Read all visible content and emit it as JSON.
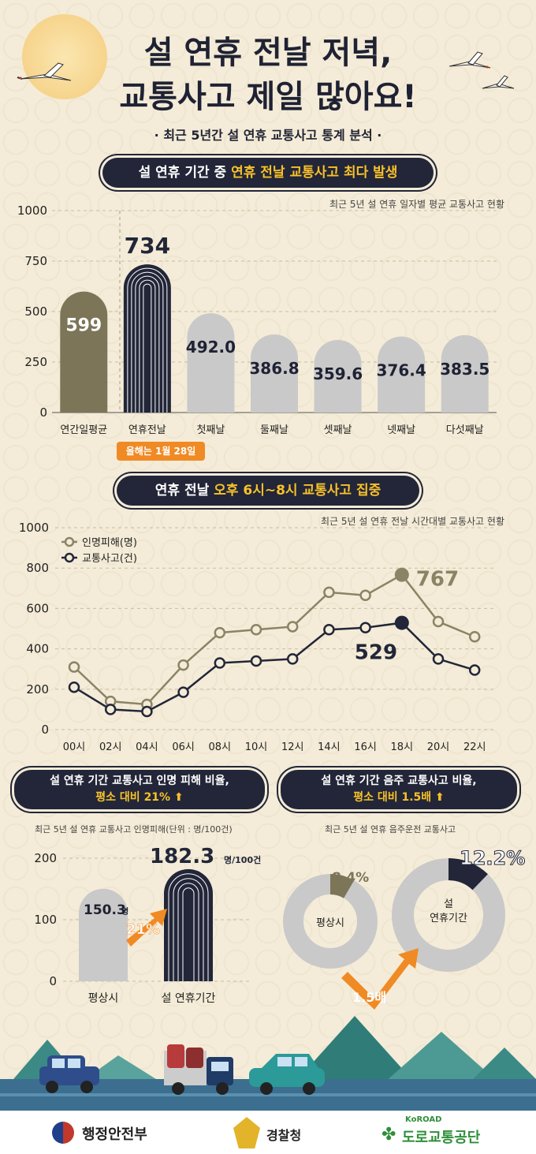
{
  "header": {
    "title_line1": "설 연휴 전날 저녁,",
    "title_line2": "교통사고 제일 많아요!",
    "subtitle": "· 최근 5년간 설 연휴 교통사고 통계 분석 ·"
  },
  "section1": {
    "pill_prefix": "설 연휴 기간 중 ",
    "pill_highlight": "연휴 전날 교통사고 최다 발생",
    "note": "최근 5년 설 연휴 일자별 평균 교통사고 현황",
    "date_badge": "올해는 1월 28일"
  },
  "section2": {
    "pill_prefix": "연휴 전날 ",
    "pill_highlight": "오후 6시~8시 교통사고 집중",
    "note": "최근 5년 설 연휴 전날 시간대별 교통사고 현황"
  },
  "section3": {
    "pill_line1": "설 연휴 기간 교통사고 인명 피해 비율,",
    "pill_line2": "평소 대비 21%",
    "note": "최근 5년 설 연휴 교통사고 인명피해(단위 : 명/100건)",
    "unit": "명/100건",
    "unit_small": "명",
    "ratio_label": "21%"
  },
  "section4": {
    "pill_line1": "설 연휴 기간 음주 교통사고 비율,",
    "pill_line2": "평소 대비 1.5배",
    "note": "최근 5년 설 연휴 음주운전 교통사고",
    "ratio_label": "1.5배"
  },
  "footer": {
    "org1": "행정안전부",
    "org2": "경찰청",
    "org3_small": "KoROAD",
    "org3": "도로교통공단"
  },
  "chart_data": [
    {
      "type": "bar",
      "categories": [
        "연간일평균",
        "연휴전날",
        "첫째날",
        "둘째날",
        "셋째날",
        "넷째날",
        "다섯째날"
      ],
      "values": [
        599,
        734,
        492.0,
        386.8,
        359.6,
        376.4,
        383.5
      ],
      "value_labels": [
        "599",
        "734",
        "492.0",
        "386.8",
        "359.6",
        "376.4",
        "383.5"
      ],
      "ylim": [
        0,
        1000
      ],
      "yticks": [
        0,
        250,
        500,
        750,
        1000
      ],
      "grid": true,
      "colors": [
        "#7d7558",
        "#222638",
        "#c9c9c9",
        "#c9c9c9",
        "#c9c9c9",
        "#c9c9c9",
        "#c9c9c9"
      ]
    },
    {
      "type": "line",
      "x": [
        "00시",
        "02시",
        "04시",
        "06시",
        "08시",
        "10시",
        "12시",
        "14시",
        "16시",
        "18시",
        "20시",
        "22시"
      ],
      "series": [
        {
          "name": "인명피해(명)",
          "color": "#8a8466",
          "values": [
            310,
            140,
            125,
            320,
            480,
            495,
            510,
            680,
            665,
            767,
            535,
            460
          ]
        },
        {
          "name": "교통사고(건)",
          "color": "#222638",
          "values": [
            210,
            100,
            90,
            185,
            330,
            340,
            350,
            495,
            505,
            529,
            350,
            295
          ]
        }
      ],
      "peak_labels": [
        "767",
        "529"
      ],
      "ylim": [
        0,
        1000
      ],
      "yticks": [
        0,
        200,
        400,
        600,
        800,
        1000
      ],
      "legend": "top-left",
      "grid": true
    },
    {
      "type": "bar",
      "categories": [
        "평상시",
        "설 연휴기간"
      ],
      "values": [
        150.3,
        182.3
      ],
      "value_labels": [
        "150.3",
        "182.3"
      ],
      "ylim": [
        0,
        200
      ],
      "yticks": [
        0,
        100,
        200
      ],
      "colors": [
        "#c9c9c9",
        "#222638"
      ]
    },
    {
      "type": "pie",
      "charts": [
        {
          "label": "평상시",
          "slice": 8.4,
          "slice_label": "8.4%",
          "slice_color": "#7d7558",
          "rest_color": "#c9c9c9"
        },
        {
          "label": "설 연휴기간",
          "label_line1": "설",
          "label_line2": "연휴기간",
          "slice": 12.2,
          "slice_label": "12.2%",
          "slice_color": "#222638",
          "rest_color": "#c9c9c9"
        }
      ]
    }
  ]
}
